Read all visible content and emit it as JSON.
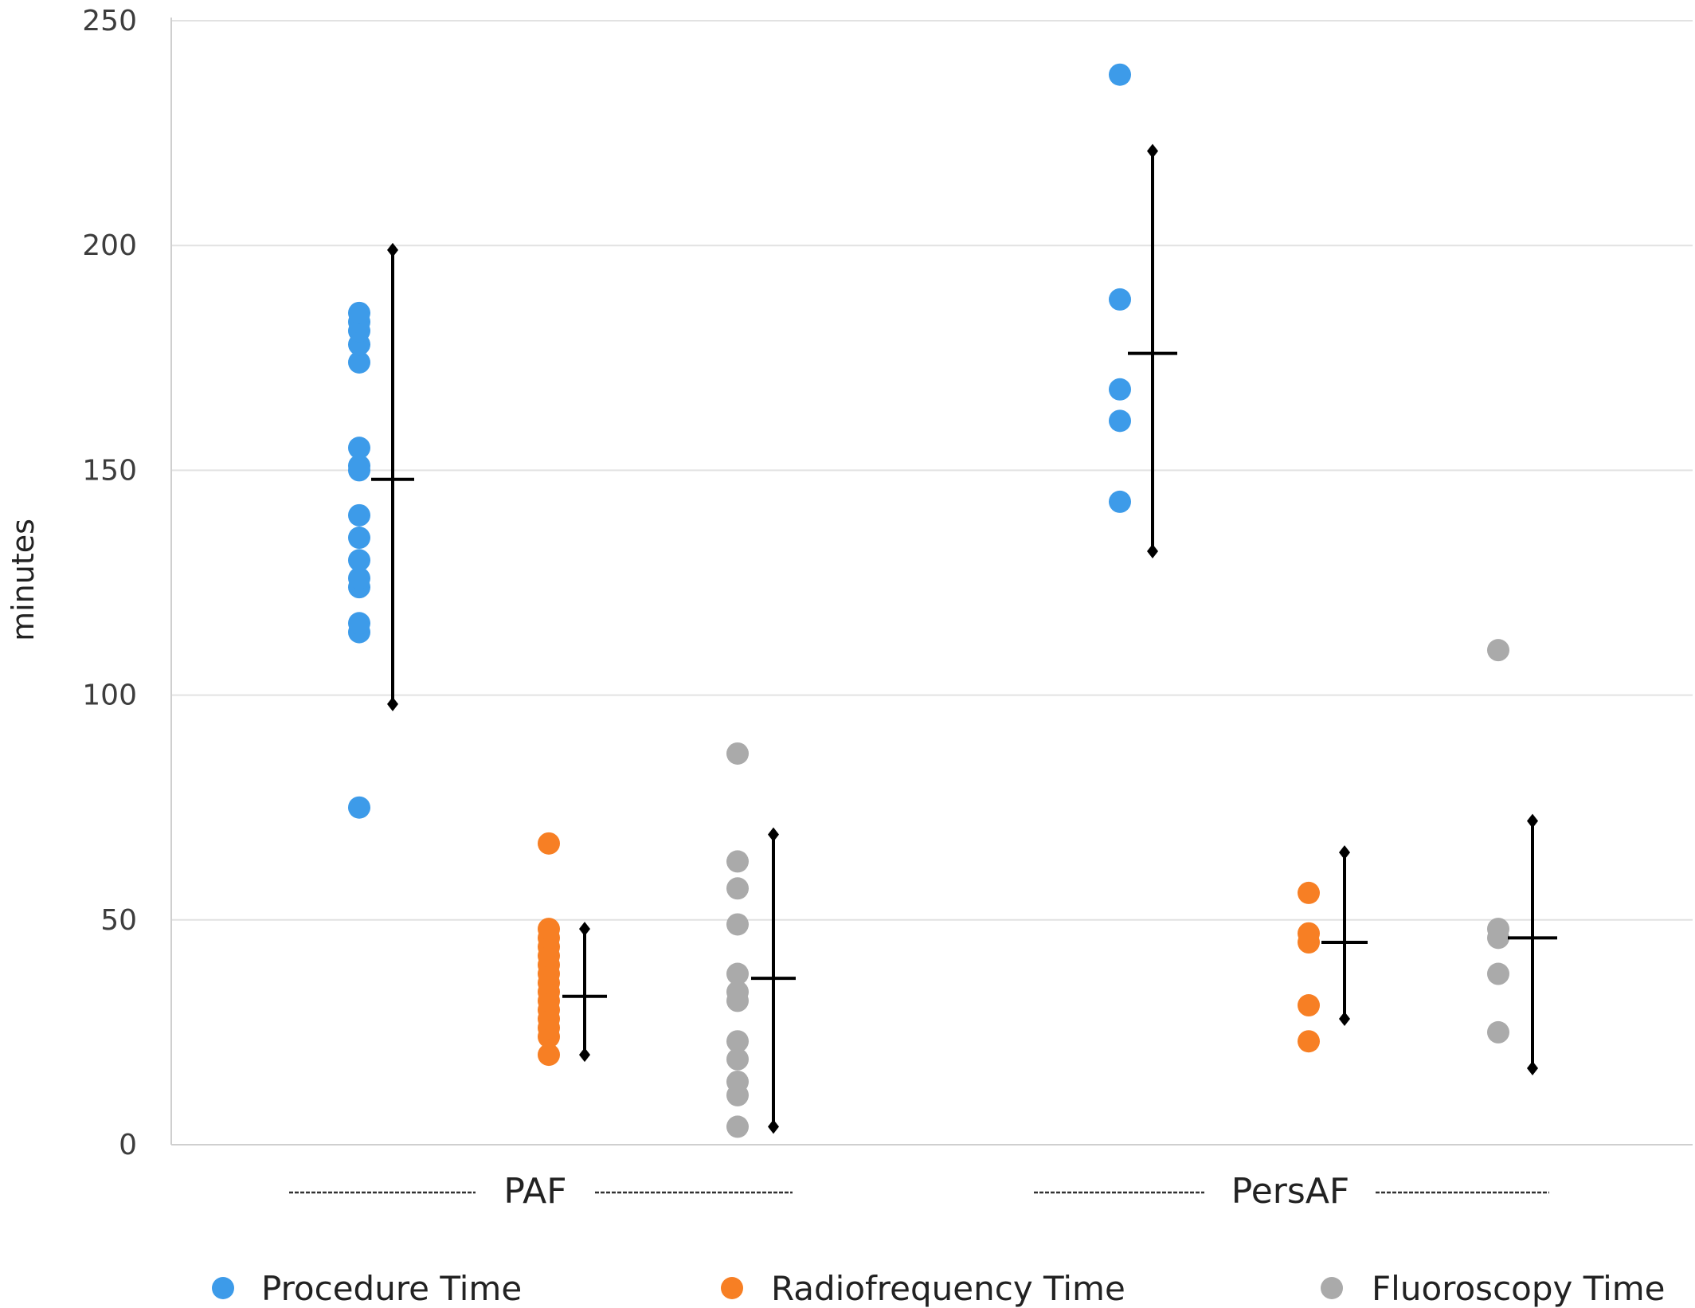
{
  "chart_data": {
    "type": "scatter",
    "title": "",
    "ylabel": "minutes",
    "xlabel": "",
    "ylim": [
      0,
      250
    ],
    "yticks": [
      "0",
      "50",
      "100",
      "150",
      "200",
      "250"
    ],
    "grid": true,
    "legend_position": "bottom",
    "groups": [
      "PAF",
      "PersAF"
    ],
    "colors": {
      "Procedure Time": "#3d9be9",
      "Radiofrequency Time": "#f77f24",
      "Fluoroscopy Time": "#aaaaaa",
      "error_bars": "#000000"
    },
    "series": [
      {
        "name": "Procedure Time",
        "group": "PAF",
        "values": [
          75,
          114,
          116,
          124,
          126,
          130,
          135,
          140,
          150,
          151,
          155,
          174,
          178,
          181,
          183,
          185
        ],
        "mean": 148,
        "range": [
          98,
          199
        ]
      },
      {
        "name": "Radiofrequency Time",
        "group": "PAF",
        "values": [
          20,
          24,
          26,
          28,
          30,
          32,
          34,
          36,
          38,
          40,
          42,
          44,
          46,
          48,
          67
        ],
        "mean": 33,
        "range": [
          20,
          48
        ]
      },
      {
        "name": "Fluoroscopy Time",
        "group": "PAF",
        "values": [
          4,
          11,
          14,
          19,
          23,
          32,
          34,
          38,
          49,
          57,
          63,
          87
        ],
        "mean": 37,
        "range": [
          4,
          69
        ]
      },
      {
        "name": "Procedure Time",
        "group": "PersAF",
        "values": [
          143,
          161,
          168,
          188,
          238
        ],
        "mean": 176,
        "range": [
          132,
          221
        ]
      },
      {
        "name": "Radiofrequency Time",
        "group": "PersAF",
        "values": [
          23,
          31,
          45,
          47,
          56
        ],
        "mean": 45,
        "range": [
          28,
          65
        ]
      },
      {
        "name": "Fluoroscopy Time",
        "group": "PersAF",
        "values": [
          25,
          38,
          46,
          48,
          110
        ],
        "mean": 46,
        "range": [
          17,
          72
        ]
      }
    ],
    "legend": [
      "Procedure Time",
      "Radiofrequency Time",
      "Fluoroscopy Time"
    ]
  }
}
